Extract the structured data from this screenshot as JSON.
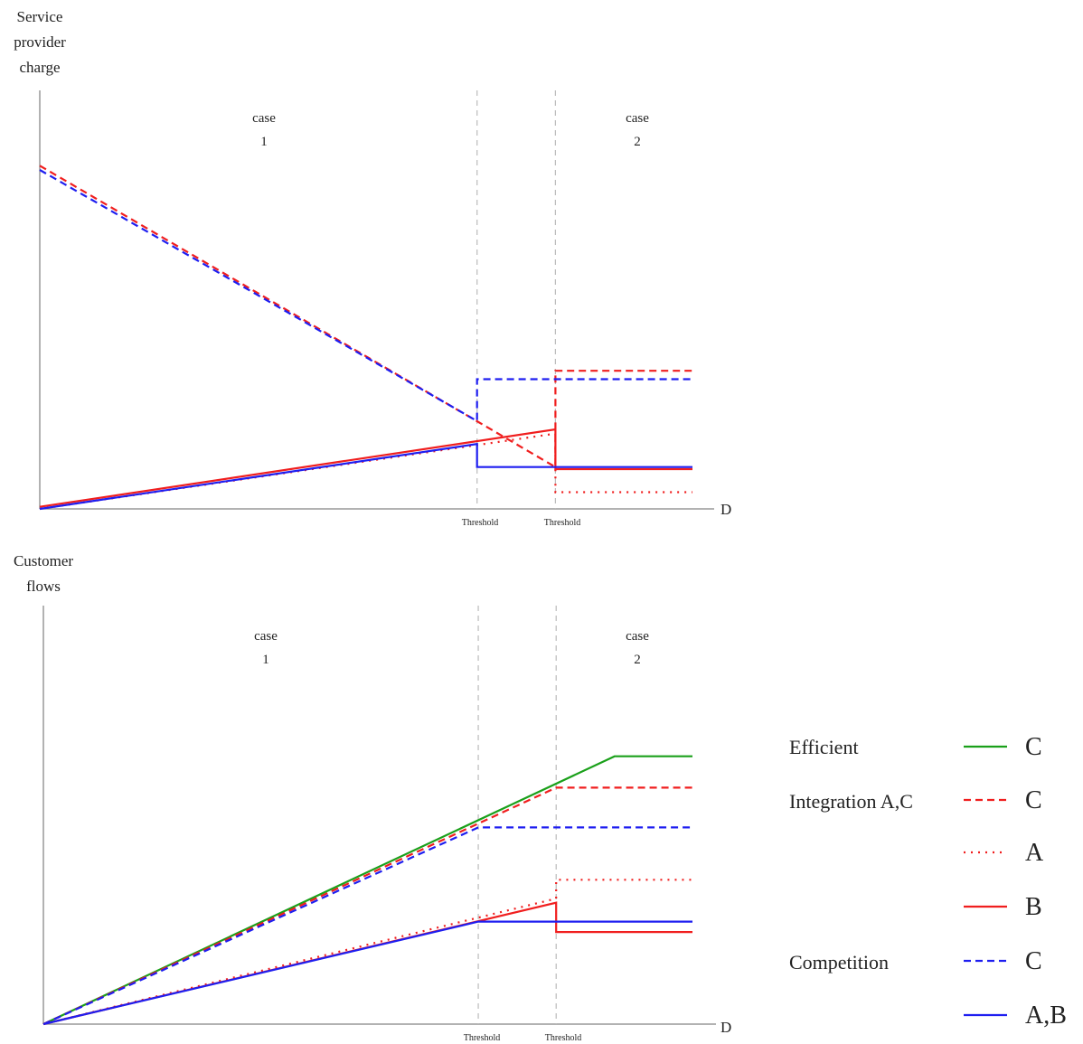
{
  "colors": {
    "green": "#1aa01a",
    "red": "#f01e1e",
    "blue": "#1e1ef0",
    "axis": "#999999",
    "threshold_line": "#bbbbbb",
    "text": "#222222"
  },
  "chart_data": [
    {
      "type": "line",
      "ylabel": [
        "Service",
        "provider",
        "charge"
      ],
      "xlabel": "D",
      "case_labels": [
        {
          "case": "case",
          "num": "1"
        },
        {
          "case": "case",
          "num": "2"
        }
      ],
      "thresholds": [
        {
          "label": "Threshold",
          "color": "blue",
          "x": 0.67
        },
        {
          "label": "Threshold",
          "color": "red",
          "x": 0.79
        }
      ],
      "xlim": [
        0,
        1
      ],
      "ylim": [
        0,
        1
      ],
      "series": [
        {
          "color": "red",
          "style": "dashed",
          "points": [
            [
              0,
              0.82
            ],
            [
              0.79,
              0.1
            ],
            [
              0.79,
              0.33
            ],
            [
              1,
              0.33
            ]
          ]
        },
        {
          "color": "blue",
          "style": "dashed",
          "points": [
            [
              0,
              0.81
            ],
            [
              0.67,
              0.21
            ],
            [
              0.67,
              0.31
            ],
            [
              1,
              0.31
            ]
          ]
        },
        {
          "color": "red",
          "style": "dotted",
          "points": [
            [
              0,
              0
            ],
            [
              0.79,
              0.18
            ],
            [
              0.79,
              0.04
            ],
            [
              1,
              0.04
            ]
          ]
        },
        {
          "color": "red",
          "style": "solid",
          "points": [
            [
              0,
              0.005
            ],
            [
              0.79,
              0.19
            ],
            [
              0.79,
              0.095
            ],
            [
              1,
              0.095
            ]
          ]
        },
        {
          "color": "blue",
          "style": "solid",
          "points": [
            [
              0,
              0
            ],
            [
              0.67,
              0.155
            ],
            [
              0.67,
              0.1
            ],
            [
              1,
              0.1
            ]
          ]
        }
      ]
    },
    {
      "type": "line",
      "ylabel": [
        "Customer",
        "flows"
      ],
      "xlabel": "D",
      "case_labels": [
        {
          "case": "case",
          "num": "1"
        },
        {
          "case": "case",
          "num": "2"
        }
      ],
      "thresholds": [
        {
          "label": "Threshold",
          "color": "blue",
          "x": 0.67
        },
        {
          "label": "Threshold",
          "color": "red",
          "x": 0.79
        }
      ],
      "xlim": [
        0,
        1
      ],
      "ylim": [
        0,
        1
      ],
      "series": [
        {
          "color": "green",
          "style": "solid",
          "points": [
            [
              0,
              0
            ],
            [
              0.88,
              0.64
            ],
            [
              1,
              0.64
            ]
          ]
        },
        {
          "color": "red",
          "style": "dashed",
          "points": [
            [
              0,
              0
            ],
            [
              0.79,
              0.565
            ],
            [
              1,
              0.565
            ]
          ]
        },
        {
          "color": "blue",
          "style": "dashed",
          "points": [
            [
              0,
              0
            ],
            [
              0.67,
              0.47
            ],
            [
              1,
              0.47
            ]
          ]
        },
        {
          "color": "red",
          "style": "dotted",
          "points": [
            [
              0,
              0
            ],
            [
              0.79,
              0.3
            ],
            [
              0.79,
              0.345
            ],
            [
              1,
              0.345
            ]
          ]
        },
        {
          "color": "red",
          "style": "solid",
          "points": [
            [
              0,
              0
            ],
            [
              0.79,
              0.29
            ],
            [
              0.79,
              0.22
            ],
            [
              1,
              0.22
            ]
          ]
        },
        {
          "color": "blue",
          "style": "solid",
          "points": [
            [
              0,
              0
            ],
            [
              0.67,
              0.245
            ],
            [
              1,
              0.245
            ]
          ]
        }
      ]
    }
  ],
  "legend": {
    "groups": [
      {
        "label": "Efficient",
        "color": "green"
      },
      {
        "label": "Integration A,C",
        "color": "red"
      },
      {
        "label": "Competition",
        "color": "blue"
      }
    ],
    "entries": [
      {
        "color": "green",
        "style": "solid",
        "label": "C"
      },
      {
        "color": "red",
        "style": "dashed",
        "label": "C"
      },
      {
        "color": "red",
        "style": "dotted",
        "label": "A"
      },
      {
        "color": "red",
        "style": "solid",
        "label": "B"
      },
      {
        "color": "blue",
        "style": "dashed",
        "label": "C"
      },
      {
        "color": "blue",
        "style": "solid",
        "label": "A,B"
      }
    ]
  }
}
